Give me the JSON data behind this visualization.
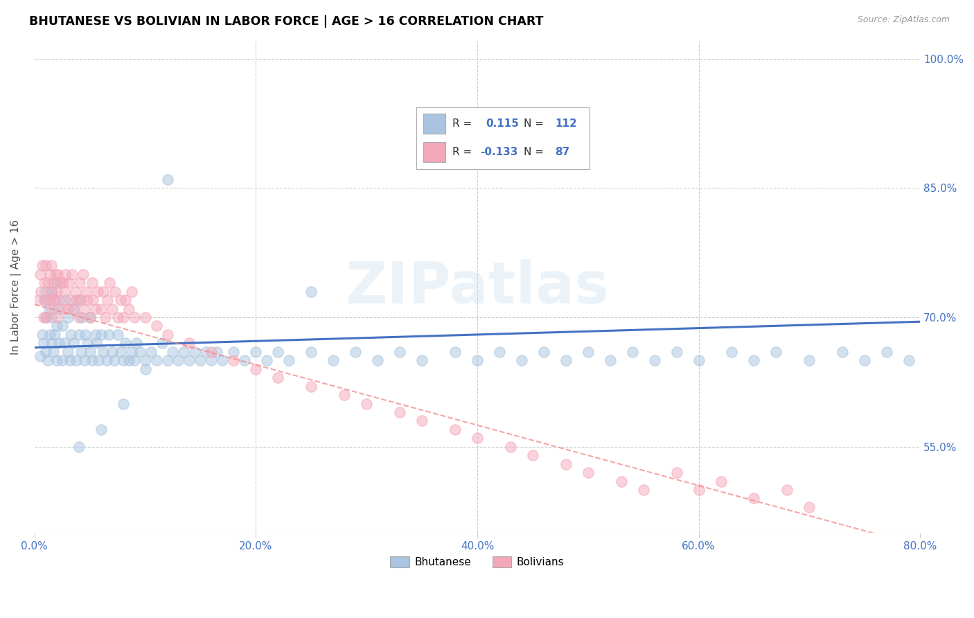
{
  "title": "BHUTANESE VS BOLIVIAN IN LABOR FORCE | AGE > 16 CORRELATION CHART",
  "source": "Source: ZipAtlas.com",
  "ylabel": "In Labor Force | Age > 16",
  "xlim": [
    0.0,
    0.8
  ],
  "ylim": [
    0.45,
    1.02
  ],
  "xtick_labels": [
    "0.0%",
    "20.0%",
    "40.0%",
    "60.0%",
    "80.0%"
  ],
  "xtick_vals": [
    0.0,
    0.2,
    0.4,
    0.6,
    0.8
  ],
  "ytick_labels": [
    "55.0%",
    "70.0%",
    "85.0%",
    "100.0%"
  ],
  "ytick_vals": [
    0.55,
    0.7,
    0.85,
    1.0
  ],
  "bhutanese_R": 0.115,
  "bhutanese_N": 112,
  "bolivian_R": -0.133,
  "bolivian_N": 87,
  "bhutanese_color": "#a8c4e0",
  "bolivian_color": "#f4a7b9",
  "bhutanese_line_color": "#4472c4",
  "bolivian_line_color": "#f08080",
  "watermark": "ZIPatlas",
  "bhu_line_start_y": 0.665,
  "bhu_line_end_y": 0.695,
  "bol_line_start_y": 0.715,
  "bol_line_end_y": 0.435,
  "bhutanese_x": [
    0.005,
    0.007,
    0.008,
    0.009,
    0.01,
    0.01,
    0.01,
    0.012,
    0.013,
    0.014,
    0.015,
    0.015,
    0.016,
    0.017,
    0.018,
    0.018,
    0.02,
    0.02,
    0.02,
    0.022,
    0.022,
    0.025,
    0.025,
    0.027,
    0.028,
    0.03,
    0.03,
    0.032,
    0.033,
    0.035,
    0.036,
    0.038,
    0.04,
    0.04,
    0.042,
    0.043,
    0.045,
    0.046,
    0.048,
    0.05,
    0.05,
    0.052,
    0.055,
    0.056,
    0.058,
    0.06,
    0.062,
    0.065,
    0.067,
    0.07,
    0.072,
    0.075,
    0.078,
    0.08,
    0.082,
    0.085,
    0.088,
    0.09,
    0.092,
    0.095,
    0.1,
    0.105,
    0.11,
    0.115,
    0.12,
    0.125,
    0.13,
    0.135,
    0.14,
    0.145,
    0.15,
    0.155,
    0.16,
    0.165,
    0.17,
    0.18,
    0.19,
    0.2,
    0.21,
    0.22,
    0.23,
    0.25,
    0.27,
    0.29,
    0.31,
    0.33,
    0.35,
    0.38,
    0.4,
    0.42,
    0.44,
    0.46,
    0.48,
    0.5,
    0.52,
    0.54,
    0.56,
    0.58,
    0.6,
    0.63,
    0.65,
    0.67,
    0.7,
    0.73,
    0.75,
    0.77,
    0.79,
    0.12,
    0.1,
    0.08,
    0.06,
    0.04,
    0.25
  ],
  "bhutanese_y": [
    0.655,
    0.68,
    0.67,
    0.72,
    0.66,
    0.7,
    0.73,
    0.65,
    0.71,
    0.68,
    0.67,
    0.7,
    0.73,
    0.66,
    0.68,
    0.72,
    0.65,
    0.69,
    0.74,
    0.67,
    0.71,
    0.65,
    0.69,
    0.67,
    0.72,
    0.66,
    0.7,
    0.65,
    0.68,
    0.67,
    0.71,
    0.65,
    0.68,
    0.72,
    0.66,
    0.7,
    0.65,
    0.68,
    0.67,
    0.66,
    0.7,
    0.65,
    0.68,
    0.67,
    0.65,
    0.68,
    0.66,
    0.65,
    0.68,
    0.66,
    0.65,
    0.68,
    0.66,
    0.65,
    0.67,
    0.65,
    0.66,
    0.65,
    0.67,
    0.66,
    0.65,
    0.66,
    0.65,
    0.67,
    0.65,
    0.66,
    0.65,
    0.66,
    0.65,
    0.66,
    0.65,
    0.66,
    0.65,
    0.66,
    0.65,
    0.66,
    0.65,
    0.66,
    0.65,
    0.66,
    0.65,
    0.66,
    0.65,
    0.66,
    0.65,
    0.66,
    0.65,
    0.66,
    0.65,
    0.66,
    0.65,
    0.66,
    0.65,
    0.66,
    0.65,
    0.66,
    0.65,
    0.66,
    0.65,
    0.66,
    0.65,
    0.66,
    0.65,
    0.66,
    0.65,
    0.66,
    0.65,
    0.86,
    0.64,
    0.6,
    0.57,
    0.55,
    0.73
  ],
  "bolivian_x": [
    0.003,
    0.005,
    0.006,
    0.007,
    0.008,
    0.009,
    0.01,
    0.01,
    0.011,
    0.012,
    0.013,
    0.014,
    0.015,
    0.015,
    0.016,
    0.017,
    0.018,
    0.019,
    0.02,
    0.02,
    0.021,
    0.022,
    0.023,
    0.025,
    0.026,
    0.027,
    0.028,
    0.03,
    0.031,
    0.032,
    0.034,
    0.035,
    0.037,
    0.038,
    0.04,
    0.041,
    0.042,
    0.044,
    0.045,
    0.047,
    0.048,
    0.05,
    0.052,
    0.053,
    0.055,
    0.057,
    0.06,
    0.062,
    0.064,
    0.066,
    0.068,
    0.07,
    0.073,
    0.075,
    0.078,
    0.08,
    0.082,
    0.085,
    0.088,
    0.09,
    0.1,
    0.11,
    0.12,
    0.14,
    0.16,
    0.18,
    0.2,
    0.22,
    0.25,
    0.28,
    0.3,
    0.33,
    0.35,
    0.38,
    0.4,
    0.43,
    0.45,
    0.48,
    0.5,
    0.53,
    0.55,
    0.58,
    0.6,
    0.62,
    0.65,
    0.68,
    0.7
  ],
  "bolivian_y": [
    0.72,
    0.75,
    0.73,
    0.76,
    0.7,
    0.74,
    0.72,
    0.76,
    0.7,
    0.74,
    0.72,
    0.75,
    0.73,
    0.76,
    0.71,
    0.74,
    0.72,
    0.75,
    0.7,
    0.73,
    0.75,
    0.72,
    0.74,
    0.71,
    0.74,
    0.73,
    0.75,
    0.71,
    0.74,
    0.72,
    0.75,
    0.71,
    0.73,
    0.72,
    0.7,
    0.74,
    0.72,
    0.75,
    0.71,
    0.73,
    0.72,
    0.7,
    0.74,
    0.72,
    0.71,
    0.73,
    0.71,
    0.73,
    0.7,
    0.72,
    0.74,
    0.71,
    0.73,
    0.7,
    0.72,
    0.7,
    0.72,
    0.71,
    0.73,
    0.7,
    0.7,
    0.69,
    0.68,
    0.67,
    0.66,
    0.65,
    0.64,
    0.63,
    0.62,
    0.61,
    0.6,
    0.59,
    0.58,
    0.57,
    0.56,
    0.55,
    0.54,
    0.53,
    0.52,
    0.51,
    0.5,
    0.52,
    0.5,
    0.51,
    0.49,
    0.5,
    0.48
  ]
}
